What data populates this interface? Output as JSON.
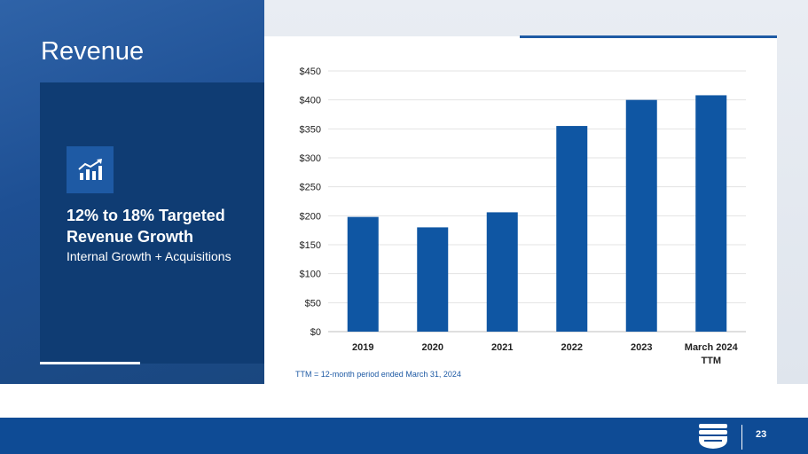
{
  "slide": {
    "title": "Revenue",
    "page_number": "23"
  },
  "panel": {
    "icon": "growth-chart-icon",
    "heading": "12% to 18% Targeted Revenue Growth",
    "subtext": "Internal Growth + Acquisitions"
  },
  "footnote": "TTM = 12-month period ended March 31, 2024",
  "colors": {
    "bar": "#0f56a3",
    "panel": "#0f3c73",
    "footer": "#0e4b95"
  },
  "chart_data": {
    "type": "bar",
    "categories": [
      "2019",
      "2020",
      "2021",
      "2022",
      "2023",
      "March 2024 TTM"
    ],
    "values": [
      198,
      180,
      206,
      355,
      400,
      408
    ],
    "ylim": [
      0,
      450
    ],
    "yticks": [
      "$0",
      "$50",
      "$100",
      "$150",
      "$200",
      "$250",
      "$300",
      "$350",
      "$400",
      "$450"
    ],
    "title": "",
    "xlabel": "",
    "ylabel": "",
    "grid": true,
    "legend": "none"
  }
}
